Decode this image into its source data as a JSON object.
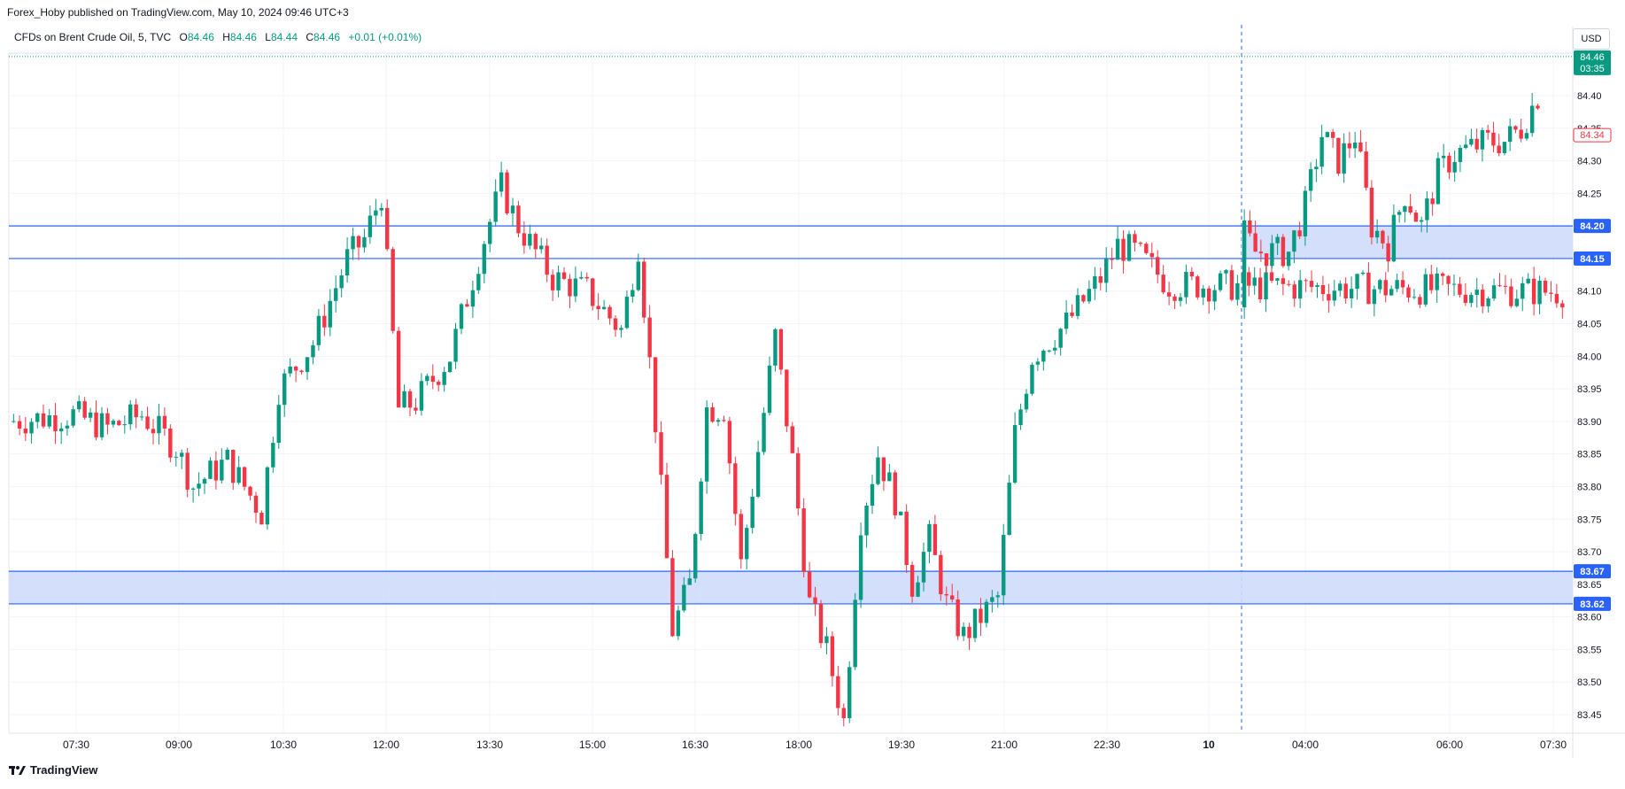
{
  "header": {
    "published": "Forex_Hoby published on TradingView.com, May 10, 2024 09:46 UTC+3"
  },
  "legend": {
    "symbol": "CFDs on Brent Crude Oil, 5, TVC",
    "o_label": "O",
    "o_value": "84.46",
    "h_label": "H",
    "h_value": "84.46",
    "l_label": "L",
    "l_value": "84.44",
    "c_label": "C",
    "c_value": "84.46",
    "change": "+0.01 (+0.01%)"
  },
  "currency": "USD",
  "footer": {
    "brand": "TradingView"
  },
  "colors": {
    "up": "#089981",
    "down": "#f23645",
    "zone_fill": "#cfdcfb",
    "zone_line": "#2962ff",
    "grid": "#f0f3fa",
    "last_price": "#089981",
    "bid_line": "#f23645"
  },
  "chart_data": {
    "type": "candlestick",
    "symbol": "CFDs on Brent Crude Oil",
    "interval": "5",
    "ylim": [
      83.42,
      84.49
    ],
    "y_ticks": [
      "84.40",
      "84.35",
      "84.30",
      "84.25",
      "84.20",
      "84.15",
      "84.10",
      "84.05",
      "84.00",
      "83.95",
      "83.90",
      "83.85",
      "83.80",
      "83.75",
      "83.70",
      "83.65",
      "83.60",
      "83.55",
      "83.50",
      "83.45"
    ],
    "x_ticks": [
      "07:30",
      "09:00",
      "10:30",
      "12:00",
      "13:30",
      "15:00",
      "16:30",
      "18:00",
      "19:30",
      "21:00",
      "22:30",
      "10",
      "04:00",
      "06:00",
      "07:30"
    ],
    "zones": [
      {
        "from": 84.15,
        "to": 84.2,
        "top_label": "84.20",
        "bottom_label": "84.15"
      },
      {
        "from": 83.62,
        "to": 83.67,
        "top_label": "83.67",
        "bottom_label": "83.62"
      }
    ],
    "last_price": {
      "value": 84.46,
      "label": "84.46",
      "countdown": "03:35"
    },
    "bid_price": {
      "value": 84.34,
      "label": "84.34"
    },
    "session_break": "10",
    "ohlc_waypoints": [
      [
        "07:00",
        83.9
      ],
      [
        "07:30",
        83.91
      ],
      [
        "08:00",
        83.89
      ],
      [
        "08:30",
        83.91
      ],
      [
        "09:00",
        83.86
      ],
      [
        "09:15",
        83.8
      ],
      [
        "09:45",
        83.84
      ],
      [
        "10:15",
        83.76
      ],
      [
        "10:30",
        83.95
      ],
      [
        "11:00",
        84.02
      ],
      [
        "11:30",
        84.15
      ],
      [
        "11:45",
        84.18
      ],
      [
        "12:00",
        84.25
      ],
      [
        "12:15",
        83.92
      ],
      [
        "12:30",
        83.93
      ],
      [
        "13:00",
        84.0
      ],
      [
        "13:30",
        84.18
      ],
      [
        "13:45",
        84.26
      ],
      [
        "14:00",
        84.2
      ],
      [
        "14:30",
        84.12
      ],
      [
        "15:00",
        84.1
      ],
      [
        "15:30",
        84.04
      ],
      [
        "15:45",
        84.17
      ],
      [
        "16:00",
        83.9
      ],
      [
        "16:15",
        83.58
      ],
      [
        "16:30",
        83.65
      ],
      [
        "16:45",
        83.92
      ],
      [
        "17:00",
        83.92
      ],
      [
        "17:15",
        83.68
      ],
      [
        "17:45",
        84.03
      ],
      [
        "18:00",
        83.84
      ],
      [
        "18:15",
        83.62
      ],
      [
        "18:30",
        83.55
      ],
      [
        "18:45",
        83.44
      ],
      [
        "19:00",
        83.75
      ],
      [
        "19:15",
        83.85
      ],
      [
        "19:30",
        83.78
      ],
      [
        "19:45",
        83.65
      ],
      [
        "20:00",
        83.72
      ],
      [
        "20:15",
        83.62
      ],
      [
        "20:30",
        83.57
      ],
      [
        "21:00",
        83.63
      ],
      [
        "21:15",
        83.88
      ],
      [
        "21:30",
        84.0
      ],
      [
        "22:00",
        84.05
      ],
      [
        "22:30",
        84.12
      ],
      [
        "22:45",
        84.17
      ],
      [
        "23:00",
        84.16
      ],
      [
        "23:30",
        84.11
      ],
      [
        "23:45",
        84.07
      ],
      [
        "03:00",
        84.2
      ],
      [
        "03:15",
        84.16
      ],
      [
        "03:45",
        84.16
      ],
      [
        "04:00",
        84.23
      ],
      [
        "04:15",
        84.34
      ],
      [
        "04:30",
        84.3
      ],
      [
        "04:45",
        84.34
      ],
      [
        "05:00",
        84.2
      ],
      [
        "05:15",
        84.17
      ],
      [
        "05:30",
        84.25
      ],
      [
        "05:45",
        84.2
      ],
      [
        "06:00",
        84.28
      ],
      [
        "06:15",
        84.31
      ],
      [
        "06:45",
        84.33
      ],
      [
        "07:00",
        84.33
      ],
      [
        "07:15",
        84.35
      ],
      [
        "07:30",
        84.4
      ]
    ]
  }
}
